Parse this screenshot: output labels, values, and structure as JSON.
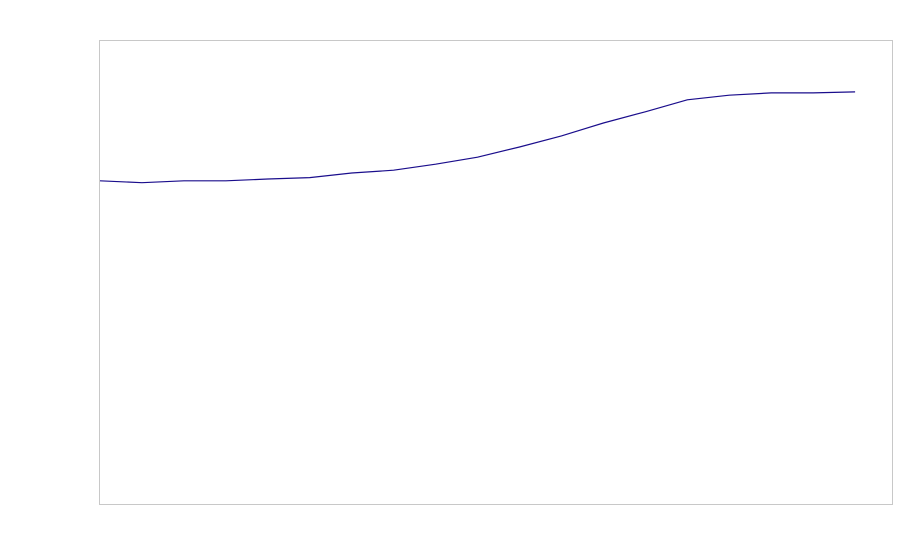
{
  "chart_data": {
    "type": "line",
    "title": "",
    "xlabel": "",
    "ylabel": "",
    "x": [
      0,
      1,
      2,
      3,
      4,
      5,
      6,
      7,
      8,
      9,
      10,
      11,
      12,
      13,
      14,
      15,
      16,
      17,
      18
    ],
    "series": [
      {
        "values": [
          69.8,
          69.4,
          69.8,
          69.8,
          70.2,
          70.5,
          71.5,
          72.1,
          73.4,
          74.9,
          77.1,
          79.5,
          82.3,
          84.7,
          87.3,
          88.3,
          88.8,
          88.8,
          89.0
        ],
        "color": "#1a0d8c"
      }
    ],
    "xlim": [
      0,
      18.88
    ],
    "ylim": [
      0,
      100
    ],
    "grid": false,
    "legend": "none",
    "frame_color": "#c8c8c8"
  }
}
